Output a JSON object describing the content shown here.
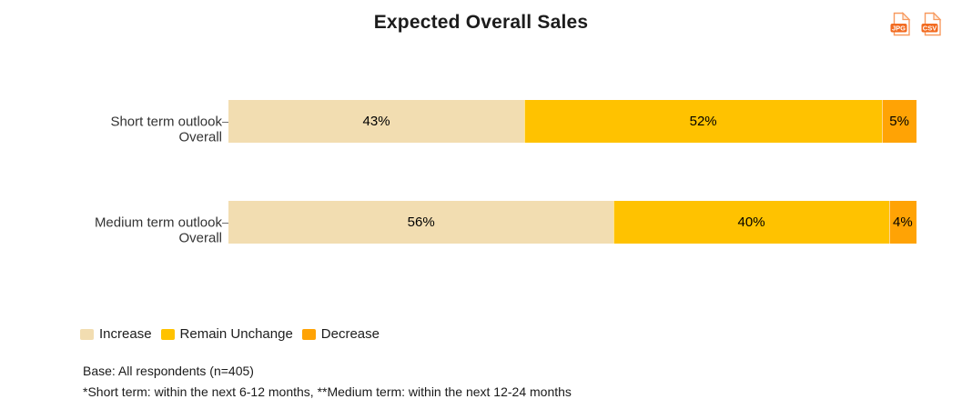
{
  "header": {
    "title": "Expected Overall Sales"
  },
  "toolbar": {
    "export_jpg_label": "JPG",
    "export_csv_label": "CSV"
  },
  "chart_data": {
    "type": "bar",
    "variant": "horizontal-stacked",
    "title": "Expected Overall Sales",
    "unit": "%",
    "xlim": [
      0,
      100
    ],
    "grid": false,
    "legend_position": "bottom-left",
    "categories": [
      {
        "lines": [
          "Short term outlook",
          "Overall"
        ]
      },
      {
        "lines": [
          "Medium term outlook",
          "Overall"
        ]
      }
    ],
    "series": [
      {
        "name": "Increase",
        "color": "#F2DDB1",
        "values": [
          43,
          56
        ]
      },
      {
        "name": "Remain Unchange",
        "color": "#FFC200",
        "values": [
          52,
          40
        ]
      },
      {
        "name": "Decrease",
        "color": "#FFA305",
        "values": [
          5,
          4
        ]
      }
    ]
  },
  "legend": {
    "items": [
      {
        "label": "Increase",
        "color": "#F2DDB1"
      },
      {
        "label": "Remain Unchange",
        "color": "#FFC200"
      },
      {
        "label": "Decrease",
        "color": "#FFA305"
      }
    ]
  },
  "footnotes": {
    "base": "Base: All respondents (n=405)",
    "terms": "*Short term: within the next 6-12 months, **Medium term: within the next 12-24 months"
  },
  "colors": {
    "icon_badge": "#F26B21",
    "icon_outline": "#F79A5F",
    "icon_fold_fill": "#FDEADB"
  }
}
